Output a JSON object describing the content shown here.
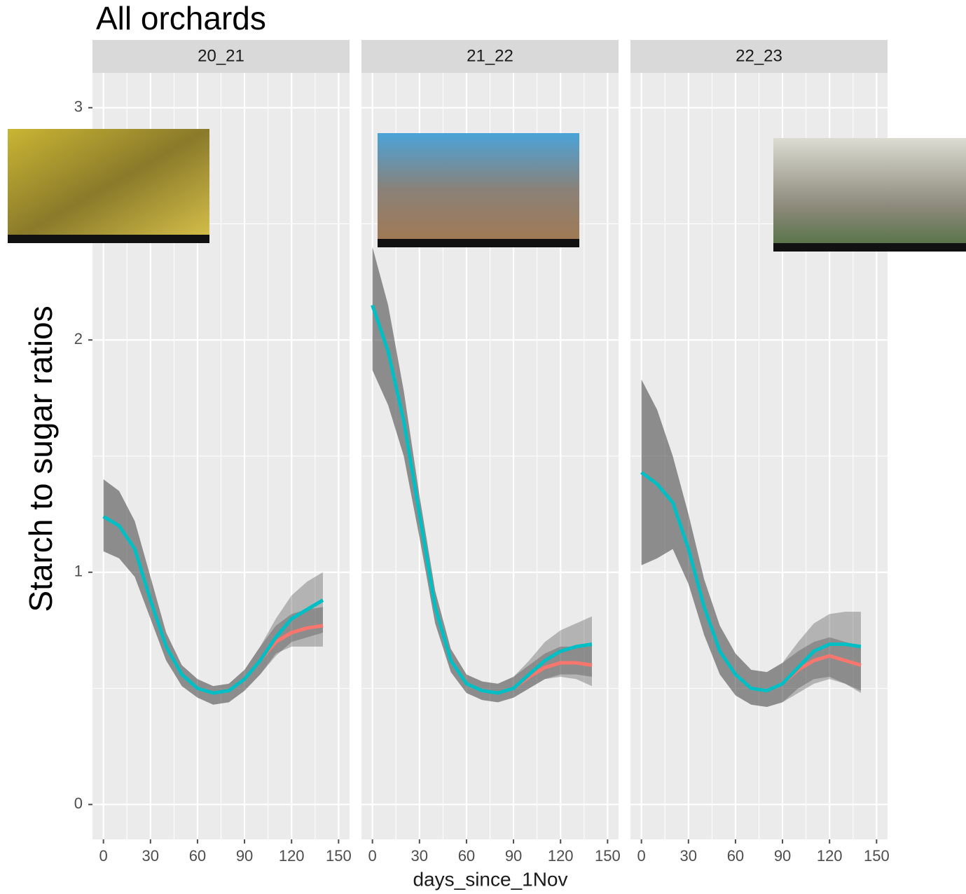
{
  "chart_data": {
    "type": "line",
    "title": "All orchards",
    "x_label": "days_since_1Nov",
    "y_label": "Starch to sugar ratios",
    "xlim": [
      -7,
      157
    ],
    "xticks": [
      0,
      30,
      60,
      90,
      120,
      150
    ],
    "ylim": [
      -0.15,
      3.15
    ],
    "yticks": [
      0,
      1,
      2,
      3
    ],
    "grid": true,
    "x": [
      0,
      10,
      20,
      30,
      40,
      50,
      60,
      70,
      80,
      90,
      100,
      110,
      120,
      130,
      140
    ],
    "facets": [
      {
        "label": "20_21",
        "series": [
          {
            "color": "#F8766D",
            "values": [
              1.24,
              1.2,
              1.1,
              0.88,
              0.68,
              0.56,
              0.5,
              0.48,
              0.49,
              0.54,
              0.62,
              0.7,
              0.74,
              0.76,
              0.77
            ],
            "lower": [
              1.09,
              1.06,
              0.98,
              0.8,
              0.62,
              0.51,
              0.46,
              0.43,
              0.44,
              0.49,
              0.56,
              0.65,
              0.68,
              0.68,
              0.68
            ],
            "upper": [
              1.4,
              1.35,
              1.22,
              0.98,
              0.74,
              0.6,
              0.54,
              0.51,
              0.52,
              0.58,
              0.68,
              0.77,
              0.82,
              0.84,
              0.85
            ]
          },
          {
            "color": "#00BFC4",
            "values": [
              1.24,
              1.2,
              1.1,
              0.88,
              0.68,
              0.56,
              0.5,
              0.48,
              0.49,
              0.54,
              0.62,
              0.72,
              0.8,
              0.84,
              0.88
            ],
            "lower": [
              1.09,
              1.06,
              0.98,
              0.8,
              0.62,
              0.51,
              0.46,
              0.43,
              0.44,
              0.49,
              0.56,
              0.64,
              0.7,
              0.72,
              0.74
            ],
            "upper": [
              1.4,
              1.35,
              1.22,
              0.98,
              0.74,
              0.6,
              0.54,
              0.51,
              0.52,
              0.58,
              0.68,
              0.8,
              0.9,
              0.96,
              1.0
            ]
          }
        ]
      },
      {
        "label": "21_22",
        "series": [
          {
            "color": "#F8766D",
            "values": [
              2.15,
              1.95,
              1.65,
              1.25,
              0.85,
              0.62,
              0.52,
              0.49,
              0.48,
              0.5,
              0.55,
              0.59,
              0.61,
              0.61,
              0.6
            ],
            "lower": [
              1.87,
              1.72,
              1.5,
              1.15,
              0.78,
              0.57,
              0.48,
              0.45,
              0.44,
              0.46,
              0.5,
              0.54,
              0.55,
              0.54,
              0.51
            ],
            "upper": [
              2.4,
              2.15,
              1.78,
              1.33,
              0.92,
              0.67,
              0.56,
              0.53,
              0.52,
              0.55,
              0.6,
              0.65,
              0.68,
              0.68,
              0.69
            ]
          },
          {
            "color": "#00BFC4",
            "values": [
              2.15,
              1.95,
              1.65,
              1.25,
              0.85,
              0.62,
              0.52,
              0.49,
              0.48,
              0.5,
              0.56,
              0.62,
              0.66,
              0.68,
              0.69
            ],
            "lower": [
              1.87,
              1.72,
              1.5,
              1.15,
              0.78,
              0.57,
              0.48,
              0.45,
              0.44,
              0.46,
              0.5,
              0.54,
              0.56,
              0.56,
              0.55
            ],
            "upper": [
              2.4,
              2.15,
              1.78,
              1.33,
              0.92,
              0.67,
              0.56,
              0.53,
              0.52,
              0.55,
              0.62,
              0.7,
              0.75,
              0.78,
              0.81
            ]
          }
        ]
      },
      {
        "label": "22_23",
        "series": [
          {
            "color": "#F8766D",
            "values": [
              1.43,
              1.38,
              1.3,
              1.1,
              0.85,
              0.66,
              0.56,
              0.5,
              0.49,
              0.52,
              0.58,
              0.62,
              0.64,
              0.62,
              0.6
            ],
            "lower": [
              1.03,
              1.06,
              1.1,
              0.95,
              0.73,
              0.56,
              0.47,
              0.43,
              0.42,
              0.44,
              0.5,
              0.54,
              0.55,
              0.52,
              0.49
            ],
            "upper": [
              1.83,
              1.7,
              1.5,
              1.25,
              0.97,
              0.77,
              0.65,
              0.58,
              0.57,
              0.61,
              0.66,
              0.7,
              0.72,
              0.7,
              0.68
            ]
          },
          {
            "color": "#00BFC4",
            "values": [
              1.43,
              1.38,
              1.3,
              1.1,
              0.85,
              0.66,
              0.56,
              0.5,
              0.49,
              0.52,
              0.59,
              0.66,
              0.69,
              0.69,
              0.68
            ],
            "lower": [
              1.03,
              1.06,
              1.1,
              0.95,
              0.73,
              0.56,
              0.47,
              0.43,
              0.42,
              0.44,
              0.48,
              0.52,
              0.54,
              0.52,
              0.48
            ],
            "upper": [
              1.83,
              1.7,
              1.5,
              1.25,
              0.97,
              0.77,
              0.65,
              0.58,
              0.57,
              0.61,
              0.7,
              0.78,
              0.82,
              0.83,
              0.83
            ]
          }
        ]
      }
    ]
  }
}
